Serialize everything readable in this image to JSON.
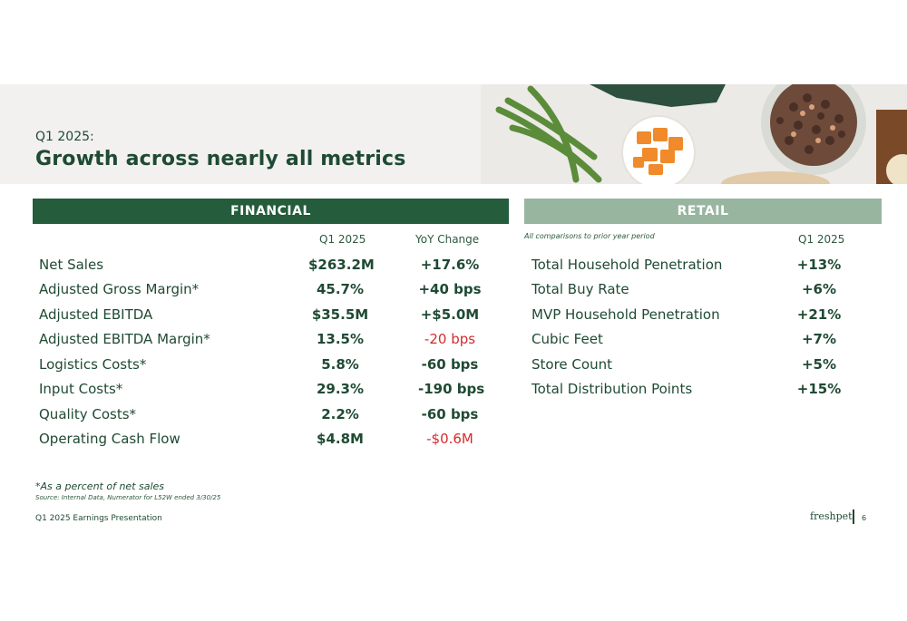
{
  "header": {
    "subtitle": "Q1 2025:",
    "title": "Growth across nearly all metrics"
  },
  "financial": {
    "heading": "FINANCIAL",
    "col_period": "Q1 2025",
    "col_change": "YoY Change",
    "rows": [
      {
        "label": "Net Sales",
        "value": "$263.2M",
        "change": "+17.6%",
        "negative": false
      },
      {
        "label": "Adjusted Gross Margin*",
        "value": "45.7%",
        "change": "+40 bps",
        "negative": false
      },
      {
        "label": "Adjusted EBITDA",
        "value": "$35.5M",
        "change": "+$5.0M",
        "negative": false
      },
      {
        "label": "Adjusted EBITDA Margin*",
        "value": "13.5%",
        "change": "-20 bps",
        "negative": true
      },
      {
        "label": "Logistics Costs*",
        "value": "5.8%",
        "change": "-60 bps",
        "negative": false
      },
      {
        "label": "Input Costs*",
        "value": "29.3%",
        "change": "-190 bps",
        "negative": false
      },
      {
        "label": "Quality Costs*",
        "value": "2.2%",
        "change": "-60 bps",
        "negative": false
      },
      {
        "label": "Operating Cash Flow",
        "value": "$4.8M",
        "change": "-$0.6M",
        "negative": true
      }
    ]
  },
  "retail": {
    "heading": "RETAIL",
    "note": "All comparisons to prior year period",
    "col_period": "Q1 2025",
    "rows": [
      {
        "label": "Total Household Penetration",
        "value": "+13%"
      },
      {
        "label": "Total Buy Rate",
        "value": "+6%"
      },
      {
        "label": "MVP Household Penetration",
        "value": "+21%"
      },
      {
        "label": "Cubic Feet",
        "value": "+7%"
      },
      {
        "label": "Store Count",
        "value": "+5%"
      },
      {
        "label": "Total Distribution Points",
        "value": "+15%"
      }
    ]
  },
  "footnotes": {
    "percent_note": "*As a percent of net sales",
    "source": "Source: Internal Data, Numerator for L52W ended 3/30/25"
  },
  "footer": {
    "presentation": "Q1 2025 Earnings Presentation",
    "logo_text": "freshpet",
    "page_number": "6"
  },
  "colors": {
    "dark_green": "#245c3c",
    "sage": "#98b5a0",
    "negative_red": "#d62b2b"
  }
}
